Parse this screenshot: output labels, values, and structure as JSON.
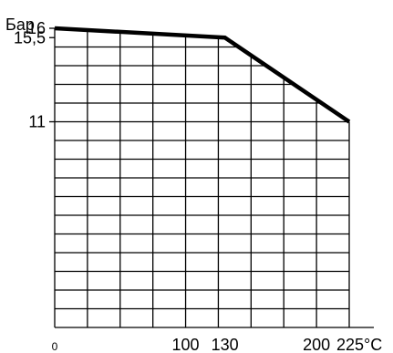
{
  "chart_data": {
    "type": "line",
    "title": "",
    "xlabel": "",
    "ylabel": "Бар",
    "x": [
      0,
      130,
      225
    ],
    "series": [
      {
        "values": [
          16,
          15.5,
          11
        ]
      }
    ],
    "xlim": [
      0,
      225
    ],
    "ylim": [
      0,
      17
    ],
    "grid": true,
    "x_tick_labels": [
      {
        "label": "0",
        "value": 0
      },
      {
        "label": "100",
        "value": 100
      },
      {
        "label": "130",
        "value": 130
      },
      {
        "label": "200",
        "value": 200
      },
      {
        "label": "225°C",
        "value": 225
      }
    ],
    "y_tick_labels": [
      {
        "label": "16",
        "value": 16
      },
      {
        "label": "15,5",
        "value": 15.5
      },
      {
        "label": "11",
        "value": 11
      }
    ],
    "line_color": "#000000",
    "grid_color": "#000000"
  }
}
